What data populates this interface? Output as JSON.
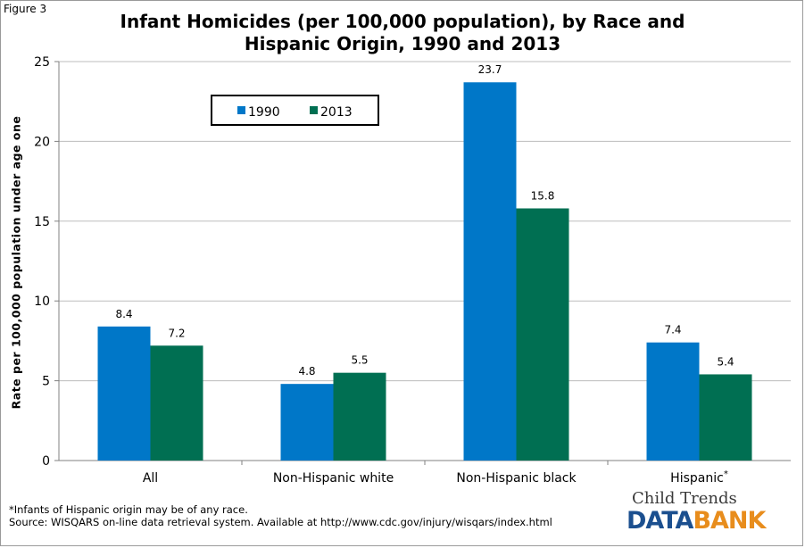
{
  "figure_label": "Figure 3",
  "footnotes": {
    "line1": "*Infants of Hispanic origin may be of any race.",
    "line2": "Source:  WISQARS on-line data retrieval system. Available at http://www.cdc.gov/injury/wisqars/index.html"
  },
  "logo": {
    "top": "Child Trends",
    "data": "DATA",
    "bank": "BANK"
  },
  "chart_data": {
    "type": "bar",
    "title_line1": "Infant Homicides (per 100,000 population), by Race and",
    "title_line2": "Hispanic Origin, 1990 and 2013",
    "xlabel": "",
    "ylabel": "Rate per 100,000 population under age one",
    "ylim": [
      0,
      25
    ],
    "yticks": [
      0,
      5,
      10,
      15,
      20,
      25
    ],
    "categories": [
      "All",
      "Non-Hispanic white",
      "Non-Hispanic black",
      "Hispanic"
    ],
    "category_superscripts": [
      "",
      "",
      "",
      "*"
    ],
    "series": [
      {
        "name": "1990",
        "color": "#0077c8",
        "values": [
          8.4,
          4.8,
          23.7,
          7.4
        ]
      },
      {
        "name": "2013",
        "color": "#006f52",
        "values": [
          7.2,
          5.5,
          15.8,
          5.4
        ]
      }
    ],
    "grid": true,
    "legend": "top-left"
  }
}
